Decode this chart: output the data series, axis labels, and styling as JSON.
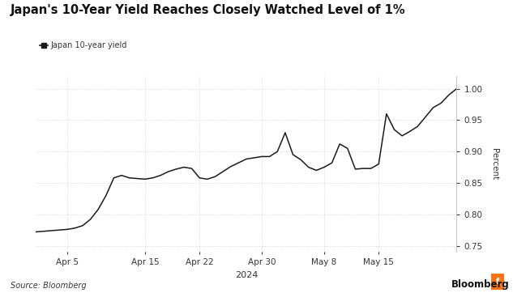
{
  "title": "Japan's 10-Year Yield Reaches Closely Watched Level of 1%",
  "legend_label": "Japan 10-year yield",
  "xlabel": "2024",
  "ylabel": "Percent",
  "source": "Source: Bloomberg",
  "watermark": "Bloomberg",
  "background_color": "#ffffff",
  "plot_bg_color": "#ffffff",
  "line_color": "#1a1a1a",
  "grid_color": "#d0d0d0",
  "ylim": [
    0.74,
    1.02
  ],
  "yticks": [
    0.75,
    0.8,
    0.85,
    0.9,
    0.95,
    1.0
  ],
  "x_tick_labels": [
    "Apr 5",
    "Apr 15",
    "Apr 22",
    "Apr 30",
    "May 8",
    "May 15"
  ],
  "x_tick_positions": [
    4,
    14,
    21,
    29,
    37,
    44
  ],
  "values": [
    0.772,
    0.773,
    0.774,
    0.775,
    0.776,
    0.778,
    0.782,
    0.792,
    0.808,
    0.83,
    0.858,
    0.862,
    0.858,
    0.857,
    0.856,
    0.858,
    0.862,
    0.868,
    0.872,
    0.875,
    0.873,
    0.858,
    0.856,
    0.86,
    0.868,
    0.876,
    0.882,
    0.888,
    0.89,
    0.892,
    0.892,
    0.9,
    0.93,
    0.895,
    0.887,
    0.875,
    0.87,
    0.875,
    0.882,
    0.912,
    0.905,
    0.872,
    0.873,
    0.873,
    0.88,
    0.96,
    0.935,
    0.925,
    0.932,
    0.94,
    0.955,
    0.97,
    0.977,
    0.99,
    1.0
  ]
}
